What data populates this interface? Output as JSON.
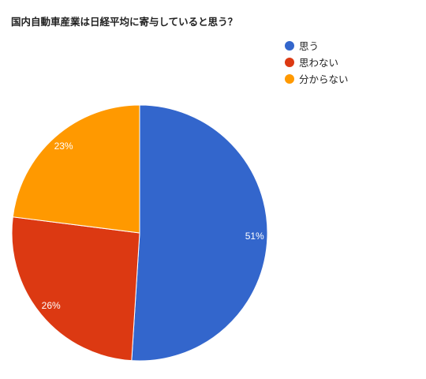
{
  "chart_data": {
    "type": "pie",
    "title": "国内自動車産業は日経平均に寄与していると思う？",
    "slices": [
      {
        "label": "思う",
        "value": 51,
        "display": "51%",
        "color": "#3366cc"
      },
      {
        "label": "思わない",
        "value": 26,
        "display": "26%",
        "color": "#dc3912"
      },
      {
        "label": "分からない",
        "value": 23,
        "display": "23%",
        "color": "#ff9900"
      }
    ],
    "legend_position": "right",
    "start_angle_degrees": 0,
    "direction": "clockwise"
  }
}
